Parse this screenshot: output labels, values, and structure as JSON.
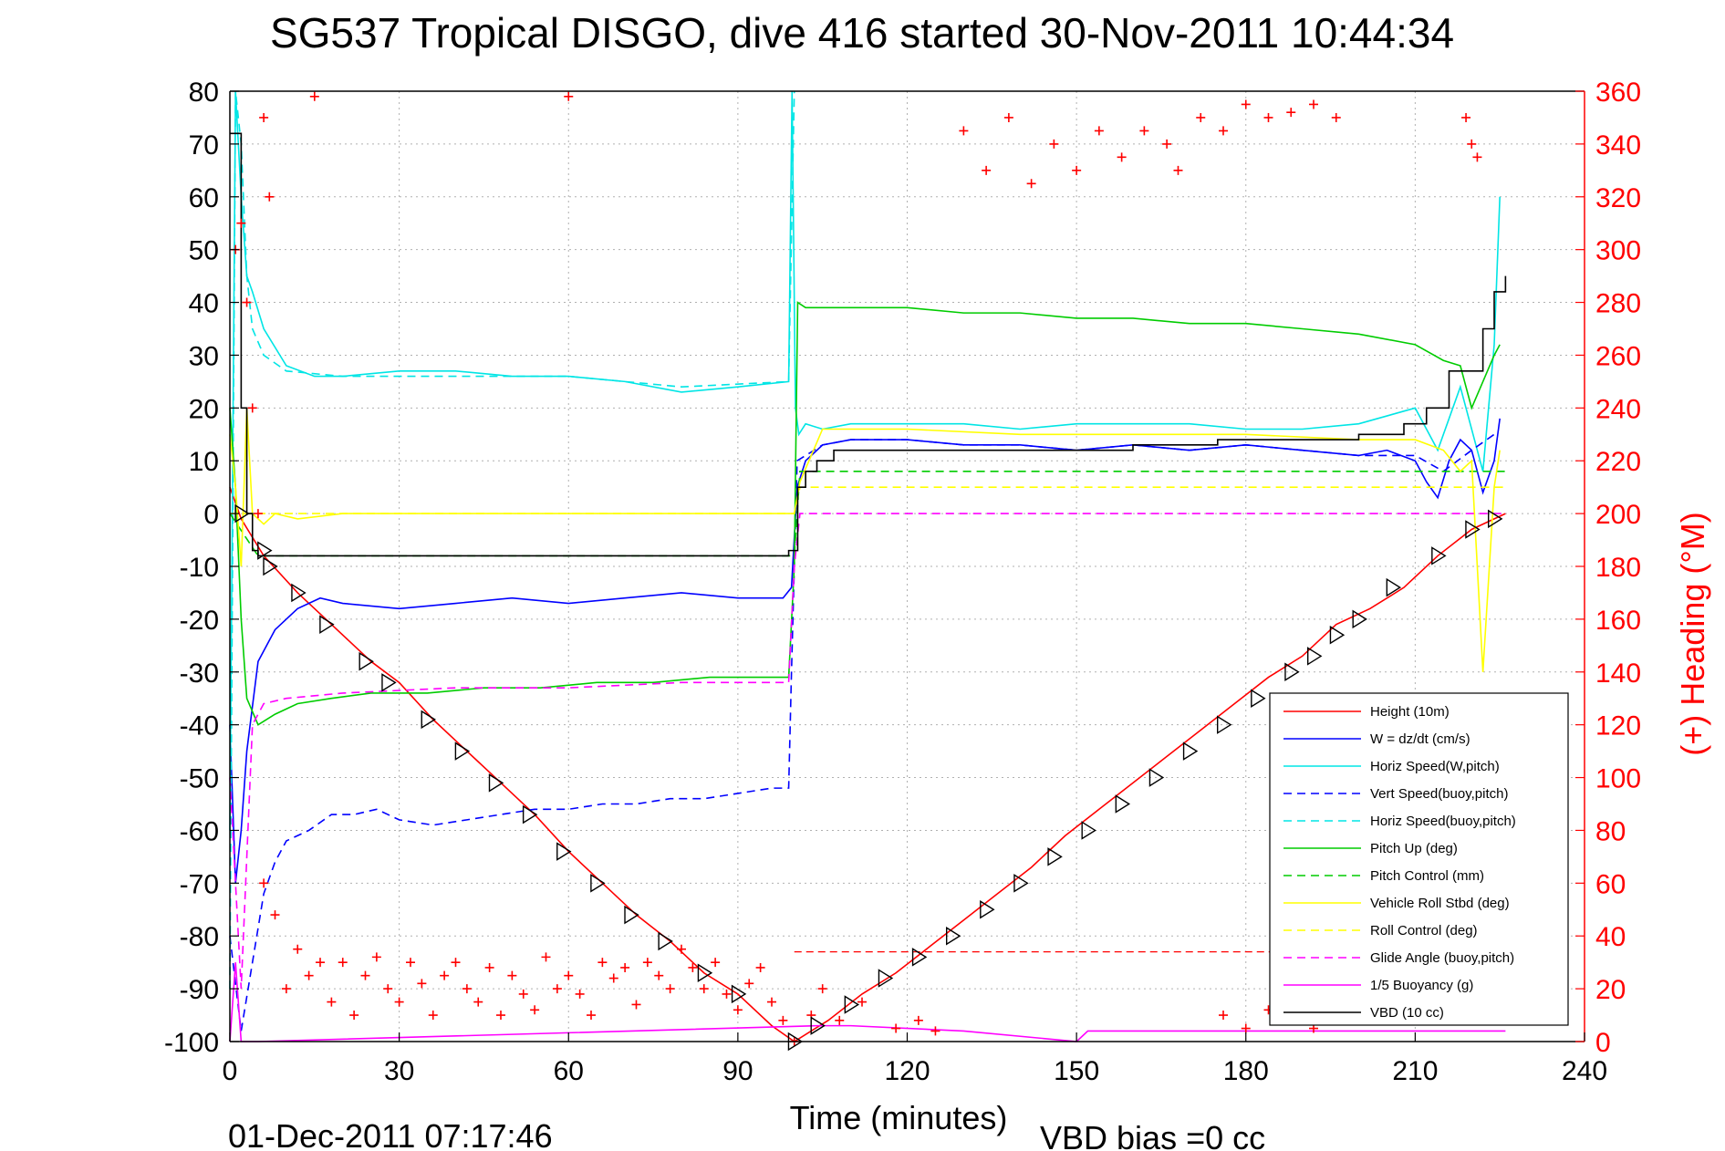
{
  "chart_data": {
    "type": "line",
    "title": "SG537 Tropical DISGO, dive 416 started 30-Nov-2011 10:44:34",
    "xlabel": "Time (minutes)",
    "ylabel_right": "(+) Heading (°M)",
    "footer_left": "01-Dec-2011 07:17:46",
    "footer_right": "VBD bias =0 cc",
    "xlim": [
      0,
      240
    ],
    "ylim_left": [
      -100,
      80
    ],
    "ylim_right": [
      0,
      360
    ],
    "xticks": [
      0,
      30,
      60,
      90,
      120,
      150,
      180,
      210,
      240
    ],
    "yticks_left": [
      80,
      70,
      60,
      50,
      40,
      30,
      20,
      10,
      0,
      -10,
      -20,
      -30,
      -40,
      -50,
      -60,
      -70,
      -80,
      -90,
      -100
    ],
    "yticks_right": [
      360,
      340,
      320,
      300,
      280,
      260,
      240,
      220,
      200,
      180,
      160,
      140,
      120,
      100,
      80,
      60,
      40,
      20,
      0
    ],
    "grid": true,
    "legend_position": "lower-right",
    "colors": {
      "height": "#ff0000",
      "w": "#0000ff",
      "horiz_speed": "#00e5e5",
      "vert_speed_buoy": "#0000ff",
      "horiz_speed_buoy": "#00e5e5",
      "pitch_up": "#00cc00",
      "pitch_control": "#00cc00",
      "roll_stbd": "#ffff00",
      "roll_control": "#ffff00",
      "glide_angle": "#ff00ff",
      "buoyancy": "#ff00ff",
      "vbd": "#000000",
      "heading": "#ff0000",
      "marker": "#000000"
    },
    "series": [
      {
        "name": "Height (10m)",
        "key": "height",
        "style": "solid",
        "x": [
          0,
          2,
          6,
          12,
          18,
          25,
          30,
          36,
          42,
          48,
          54,
          60,
          66,
          72,
          78,
          84,
          90,
          96,
          100,
          106,
          112,
          118,
          124,
          130,
          136,
          142,
          148,
          154,
          160,
          166,
          172,
          178,
          184,
          190,
          196,
          202,
          208,
          214,
          220,
          226
        ],
        "y": [
          5,
          -1,
          -8,
          -15,
          -21,
          -28,
          -32,
          -39,
          -45,
          -51,
          -57,
          -64,
          -70,
          -76,
          -81,
          -87,
          -91,
          -97,
          -100,
          -96,
          -91,
          -87,
          -82,
          -77,
          -72,
          -67,
          -61,
          -56,
          -51,
          -46,
          -41,
          -36,
          -31,
          -27,
          -21,
          -18,
          -14,
          -8,
          -3,
          0
        ]
      },
      {
        "name": "W = dz/dt (cm/s)",
        "key": "w",
        "style": "solid",
        "x": [
          0,
          1,
          2,
          3,
          5,
          8,
          12,
          16,
          20,
          30,
          40,
          50,
          60,
          70,
          80,
          90,
          98,
          99.5,
          100.5,
          102,
          105,
          110,
          120,
          130,
          140,
          150,
          160,
          170,
          180,
          190,
          200,
          205,
          210,
          212,
          214,
          216,
          218,
          220,
          222,
          224,
          225
        ],
        "y": [
          -40,
          -70,
          -60,
          -45,
          -28,
          -22,
          -18,
          -16,
          -17,
          -18,
          -17,
          -16,
          -17,
          -16,
          -15,
          -16,
          -16,
          -14,
          5,
          10,
          13,
          14,
          14,
          13,
          13,
          12,
          13,
          12,
          13,
          12,
          11,
          12,
          10,
          6,
          3,
          10,
          14,
          12,
          4,
          10,
          18
        ]
      },
      {
        "name": "Horiz Speed(W,pitch)",
        "key": "horiz_speed",
        "style": "solid",
        "x": [
          0,
          1,
          2,
          3,
          4,
          6,
          10,
          15,
          20,
          30,
          40,
          50,
          60,
          70,
          80,
          90,
          99,
          99.6,
          100.2,
          100.8,
          102,
          105,
          110,
          120,
          130,
          140,
          150,
          160,
          170,
          180,
          190,
          200,
          210,
          214,
          218,
          222,
          224,
          225
        ],
        "y": [
          -60,
          80,
          60,
          45,
          42,
          35,
          28,
          26,
          26,
          27,
          27,
          26,
          26,
          25,
          23,
          24,
          25,
          80,
          20,
          15,
          17,
          16,
          17,
          17,
          17,
          16,
          17,
          17,
          17,
          16,
          16,
          17,
          20,
          12,
          24,
          8,
          32,
          60
        ]
      },
      {
        "name": "Vert Speed(buoy,pitch)",
        "key": "vert_speed_buoy",
        "style": "dashed",
        "x": [
          0,
          2,
          4,
          6,
          8,
          10,
          14,
          18,
          22,
          26,
          30,
          36,
          42,
          48,
          54,
          60,
          66,
          72,
          78,
          84,
          90,
          96,
          99,
          99.5,
          100.5,
          105,
          110,
          120,
          130,
          140,
          150,
          160,
          170,
          180,
          190,
          200,
          210,
          215,
          220,
          224
        ],
        "y": [
          -80,
          -98,
          -85,
          -72,
          -66,
          -62,
          -60,
          -57,
          -57,
          -56,
          -58,
          -59,
          -58,
          -57,
          -56,
          -56,
          -55,
          -55,
          -54,
          -54,
          -53,
          -52,
          -52,
          -30,
          10,
          13,
          14,
          14,
          13,
          13,
          12,
          13,
          12,
          13,
          12,
          11,
          11,
          8,
          12,
          15
        ]
      },
      {
        "name": "Horiz Speed(buoy,pitch)",
        "key": "horiz_speed_buoy",
        "style": "dashed",
        "x": [
          0,
          1,
          2,
          3,
          4,
          6,
          10,
          20,
          40,
          60,
          80,
          99,
          100
        ],
        "y": [
          -90,
          80,
          70,
          45,
          35,
          30,
          27,
          26,
          26,
          26,
          24,
          25,
          80
        ]
      },
      {
        "name": "Pitch Up (deg)",
        "key": "pitch_up",
        "style": "solid",
        "x": [
          0,
          1,
          2,
          3,
          5,
          8,
          12,
          18,
          25,
          35,
          45,
          55,
          65,
          75,
          85,
          95,
          99,
          100,
          100.6,
          102,
          110,
          120,
          130,
          140,
          150,
          160,
          170,
          180,
          190,
          200,
          210,
          215,
          218,
          220,
          222,
          224,
          225
        ],
        "y": [
          20,
          5,
          -20,
          -35,
          -40,
          -38,
          -36,
          -35,
          -34,
          -34,
          -33,
          -33,
          -32,
          -32,
          -31,
          -31,
          -31,
          -10,
          40,
          39,
          39,
          39,
          38,
          38,
          37,
          37,
          36,
          36,
          35,
          34,
          32,
          29,
          28,
          20,
          25,
          30,
          32
        ]
      },
      {
        "name": "Pitch Control (mm)",
        "key": "pitch_control",
        "style": "dashed",
        "x": [
          0,
          5,
          10,
          20,
          40,
          60,
          80,
          99,
          100,
          101,
          110,
          130,
          150,
          170,
          190,
          210,
          220,
          226
        ],
        "y": [
          0,
          -8,
          -8,
          -8,
          -8,
          -8,
          -8,
          -8,
          -8,
          8,
          8,
          8,
          8,
          8,
          8,
          8,
          8,
          8
        ]
      },
      {
        "name": "Vehicle Roll Stbd (deg)",
        "key": "roll_stbd",
        "style": "solid",
        "x": [
          0,
          1,
          2,
          3,
          4,
          6,
          8,
          12,
          20,
          40,
          60,
          80,
          99,
          100,
          101,
          105,
          120,
          140,
          160,
          180,
          200,
          210,
          215,
          218,
          220,
          222,
          224,
          225
        ],
        "y": [
          15,
          5,
          -10,
          20,
          0,
          -2,
          0,
          -1,
          0,
          0,
          0,
          0,
          0,
          0,
          6,
          16,
          16,
          15,
          15,
          15,
          14,
          14,
          12,
          8,
          10,
          -30,
          5,
          12
        ]
      },
      {
        "name": "Roll Control (deg)",
        "key": "roll_control",
        "style": "dashed",
        "x": [
          0,
          4,
          10,
          30,
          60,
          90,
          100,
          101,
          130,
          160,
          190,
          220,
          226
        ],
        "y": [
          0,
          0,
          0,
          0,
          0,
          0,
          0,
          5,
          5,
          5,
          5,
          5,
          5
        ]
      },
      {
        "name": "Glide Angle (buoy,pitch)",
        "key": "glide_angle",
        "style": "dashed",
        "x": [
          0,
          2,
          4,
          6,
          10,
          20,
          40,
          60,
          80,
          99,
          100,
          101,
          120,
          160,
          200,
          226
        ],
        "y": [
          -50,
          -90,
          -40,
          -36,
          -35,
          -34,
          -33,
          -33,
          -32,
          -32,
          -10,
          0,
          0,
          0,
          0,
          0
        ]
      },
      {
        "name": "1/5 Buoyancy (g)",
        "key": "buoyancy",
        "style": "solid",
        "x": [
          0,
          1,
          2,
          3,
          5,
          104,
          110,
          130,
          150,
          152,
          170,
          190,
          210,
          220,
          226
        ],
        "y": [
          -100,
          -85,
          -100,
          -100,
          -100,
          -97,
          -97,
          -98,
          -100,
          -98,
          -98,
          -98,
          -98,
          -98,
          -98
        ]
      },
      {
        "name": "VBD (10 cc)",
        "key": "vbd",
        "style": "step",
        "x": [
          0,
          2,
          3,
          4,
          5,
          99,
          100,
          100.6,
          102,
          104,
          107,
          120,
          160,
          175,
          190,
          200,
          208,
          212,
          216,
          220,
          222,
          224,
          226
        ],
        "y": [
          72,
          20,
          0,
          -7,
          -8,
          -7,
          -7,
          5,
          8,
          10,
          12,
          12,
          13,
          14,
          14,
          15,
          17,
          20,
          27,
          27,
          35,
          42,
          45
        ]
      }
    ],
    "heading": {
      "name": "Heading (°M)",
      "axis": "right",
      "points": [
        [
          1,
          300
        ],
        [
          2,
          310
        ],
        [
          3,
          280
        ],
        [
          4,
          240
        ],
        [
          5,
          200
        ],
        [
          6,
          350
        ],
        [
          7,
          320
        ],
        [
          15,
          358
        ],
        [
          60,
          358
        ],
        [
          103,
          10
        ],
        [
          105,
          20
        ],
        [
          108,
          8
        ],
        [
          112,
          15
        ],
        [
          118,
          5
        ],
        [
          122,
          8
        ],
        [
          125,
          4
        ],
        [
          6,
          60
        ],
        [
          8,
          48
        ],
        [
          10,
          20
        ],
        [
          12,
          35
        ],
        [
          14,
          25
        ],
        [
          16,
          30
        ],
        [
          18,
          15
        ],
        [
          20,
          30
        ],
        [
          22,
          10
        ],
        [
          24,
          25
        ],
        [
          26,
          32
        ],
        [
          28,
          20
        ],
        [
          30,
          15
        ],
        [
          32,
          30
        ],
        [
          34,
          22
        ],
        [
          36,
          10
        ],
        [
          38,
          25
        ],
        [
          40,
          30
        ],
        [
          42,
          20
        ],
        [
          44,
          15
        ],
        [
          46,
          28
        ],
        [
          48,
          10
        ],
        [
          50,
          25
        ],
        [
          52,
          18
        ],
        [
          54,
          12
        ],
        [
          56,
          32
        ],
        [
          58,
          20
        ],
        [
          60,
          25
        ],
        [
          62,
          18
        ],
        [
          64,
          10
        ],
        [
          66,
          30
        ],
        [
          68,
          24
        ],
        [
          70,
          28
        ],
        [
          72,
          14
        ],
        [
          74,
          30
        ],
        [
          76,
          25
        ],
        [
          78,
          20
        ],
        [
          80,
          35
        ],
        [
          82,
          28
        ],
        [
          84,
          20
        ],
        [
          86,
          30
        ],
        [
          88,
          18
        ],
        [
          90,
          12
        ],
        [
          92,
          22
        ],
        [
          94,
          28
        ],
        [
          96,
          15
        ],
        [
          98,
          8
        ],
        [
          100,
          0
        ],
        [
          130,
          345
        ],
        [
          134,
          330
        ],
        [
          138,
          350
        ],
        [
          142,
          325
        ],
        [
          146,
          340
        ],
        [
          150,
          330
        ],
        [
          154,
          345
        ],
        [
          158,
          335
        ],
        [
          162,
          345
        ],
        [
          166,
          340
        ],
        [
          168,
          330
        ],
        [
          172,
          350
        ],
        [
          176,
          345
        ],
        [
          180,
          355
        ],
        [
          184,
          350
        ],
        [
          188,
          352
        ],
        [
          192,
          355
        ],
        [
          196,
          350
        ],
        [
          176,
          10
        ],
        [
          180,
          5
        ],
        [
          184,
          12
        ],
        [
          188,
          8
        ],
        [
          192,
          5
        ],
        [
          196,
          10
        ],
        [
          200,
          15
        ],
        [
          219,
          350
        ],
        [
          220,
          340
        ],
        [
          221,
          335
        ]
      ]
    },
    "markers": {
      "style": "triangles",
      "x": [
        2,
        6,
        7,
        12,
        17,
        24,
        28,
        35,
        41,
        47,
        53,
        59,
        65,
        71,
        77,
        84,
        90,
        100,
        104,
        110,
        116,
        122,
        128,
        134,
        140,
        146,
        152,
        158,
        164,
        170,
        176,
        182,
        188,
        192,
        196,
        200,
        206,
        214,
        220,
        224
      ],
      "y": [
        0,
        -7,
        -10,
        -15,
        -21,
        -28,
        -32,
        -39,
        -45,
        -51,
        -57,
        -64,
        -70,
        -76,
        -81,
        -87,
        -91,
        -100,
        -97,
        -93,
        -88,
        -84,
        -80,
        -75,
        -70,
        -65,
        -60,
        -55,
        -50,
        -45,
        -40,
        -35,
        -30,
        -27,
        -23,
        -20,
        -14,
        -8,
        -3,
        -1
      ]
    },
    "reference_line": {
      "key": "heading-ref",
      "style": "dashed",
      "color": "#ff0000",
      "y_right": 34
    }
  }
}
